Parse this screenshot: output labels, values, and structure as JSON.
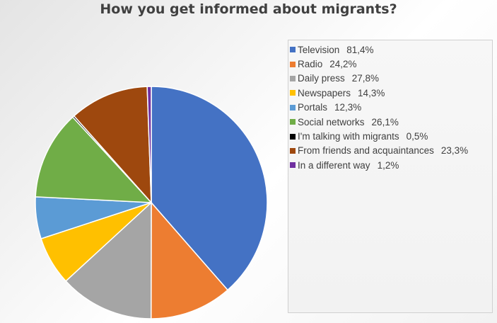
{
  "chart_data": {
    "type": "pie",
    "title": "How you get informed about migrants?",
    "slices": [
      {
        "label": "Television",
        "value": 81.4,
        "value_text": "81,4%",
        "color": "#4472C4"
      },
      {
        "label": "Radio",
        "value": 24.2,
        "value_text": "24,2%",
        "color": "#ED7D31"
      },
      {
        "label": "Daily press",
        "value": 27.8,
        "value_text": "27,8%",
        "color": "#A5A5A5"
      },
      {
        "label": "Newspapers",
        "value": 14.3,
        "value_text": "14,3%",
        "color": "#FFC000"
      },
      {
        "label": "Portals",
        "value": 12.3,
        "value_text": "12,3%",
        "color": "#5B9BD5"
      },
      {
        "label": "Social networks",
        "value": 26.1,
        "value_text": "26,1%",
        "color": "#70AD47"
      },
      {
        "label": "I'm talking with migrants",
        "value": 0.5,
        "value_text": "0,5%",
        "color": "#000000"
      },
      {
        "label": "From friends and acquaintances",
        "value": 23.3,
        "value_text": "23,3%",
        "color": "#9E480E"
      },
      {
        "label": "In a different way",
        "value": 1.2,
        "value_text": "1,2%",
        "color": "#7030A0"
      }
    ],
    "legend_position": "right"
  }
}
